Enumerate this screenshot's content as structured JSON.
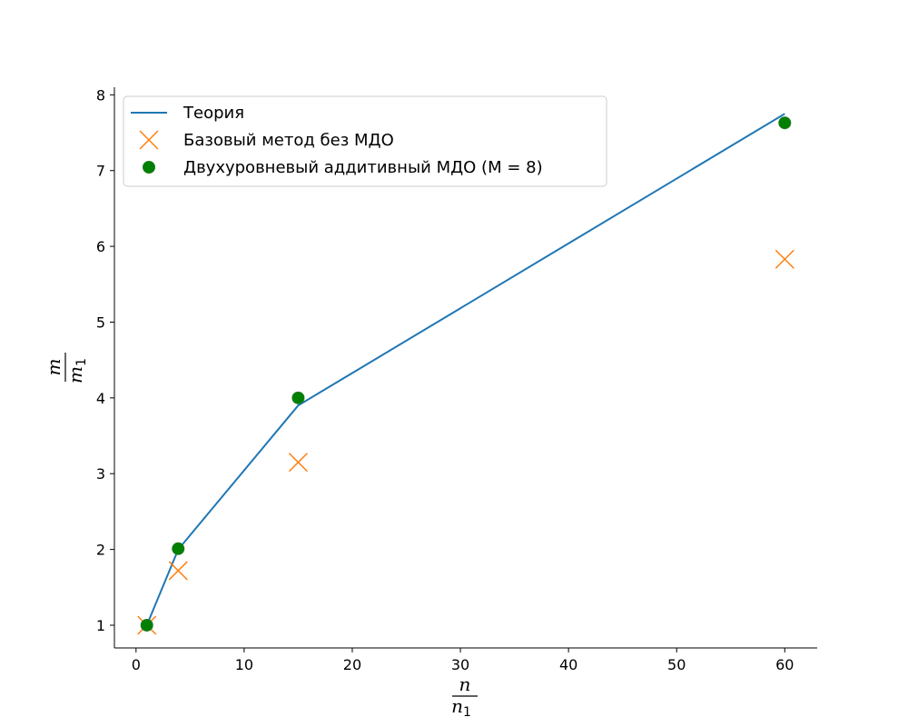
{
  "chart_data": {
    "type": "line",
    "title": "",
    "xlabel": {
      "num": "n",
      "den_main": "n",
      "den_sub": "1"
    },
    "ylabel": {
      "num": "m",
      "den_main": "m",
      "den_sub": "1"
    },
    "xlim": [
      -2,
      63
    ],
    "ylim": [
      0.7,
      8.1
    ],
    "xticks": [
      0,
      10,
      20,
      30,
      40,
      50,
      60
    ],
    "yticks": [
      1,
      2,
      3,
      4,
      5,
      6,
      7,
      8
    ],
    "grid": false,
    "legend_position": "top-left",
    "series": [
      {
        "name": "Теория",
        "kind": "line",
        "color": "#1f77b4",
        "x": [
          1,
          3.9,
          15,
          60
        ],
        "y": [
          1,
          2,
          3.9,
          7.75
        ]
      },
      {
        "name": "Базовый метод без МДО",
        "kind": "scatter-x",
        "color": "#ff7f0e",
        "x": [
          1,
          3.9,
          15,
          60
        ],
        "y": [
          1,
          1.72,
          3.15,
          5.83
        ]
      },
      {
        "name": "Двухуровневый аддитивный МДО (M = 8)",
        "kind": "scatter-dot",
        "color": "#008000",
        "x": [
          1,
          3.9,
          15,
          60
        ],
        "y": [
          1,
          2.01,
          4.0,
          7.63
        ]
      }
    ]
  }
}
